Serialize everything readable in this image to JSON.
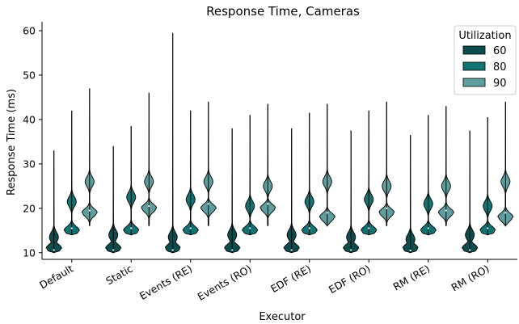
{
  "chart_data": {
    "type": "violin",
    "title": "Response Time, Cameras",
    "xlabel": "Executor",
    "ylabel": "Response Time (ms)",
    "ylim": [
      8.5,
      62
    ],
    "yticks": [
      10,
      20,
      30,
      40,
      50,
      60
    ],
    "categories": [
      "Default",
      "Static",
      "Events (RE)",
      "Events (RO)",
      "EDF (RE)",
      "EDF (RO)",
      "RM (RE)",
      "RM (RO)"
    ],
    "legend": {
      "title": "Utilization",
      "position": "top-right"
    },
    "series": [
      {
        "name": "60",
        "color": "#0e4d4d",
        "min": [
          10,
          10,
          10,
          10,
          10,
          10,
          10,
          10
        ],
        "mode": [
          11,
          11,
          11,
          11,
          11,
          11,
          11,
          11
        ],
        "bulge": [
          13.5,
          14,
          13.5,
          14,
          14,
          13.5,
          13,
          14
        ],
        "median": [
          10.6,
          10.6,
          10.6,
          10.6,
          10.6,
          10.6,
          10.5,
          10.6
        ],
        "max": [
          33,
          34,
          59.5,
          38,
          38,
          37.5,
          36.5,
          37.5
        ]
      },
      {
        "name": "80",
        "color": "#137373",
        "min": [
          14,
          14,
          14,
          14,
          14,
          14,
          14,
          14
        ],
        "mode": [
          15,
          15,
          15,
          15,
          15,
          15,
          15,
          15
        ],
        "bulge": [
          21.5,
          22.5,
          22,
          20.5,
          21.5,
          22,
          21,
          20.5
        ],
        "median": [
          15.5,
          15.5,
          15.5,
          15.5,
          15.5,
          15.5,
          15.5,
          15.5
        ],
        "max": [
          42,
          38.5,
          42,
          41,
          41.5,
          42,
          41,
          40.5
        ]
      },
      {
        "name": "90",
        "color": "#5f9e9e",
        "min": [
          16,
          16,
          16,
          16,
          16,
          16,
          16,
          16
        ],
        "mode": [
          19,
          20,
          20,
          20,
          18,
          19,
          19,
          18
        ],
        "bulge": [
          26,
          26,
          26,
          25,
          26,
          25,
          25,
          26
        ],
        "median": [
          19.5,
          20.5,
          21,
          21,
          19,
          20,
          19.5,
          19
        ],
        "max": [
          47,
          46,
          44,
          43.5,
          43.5,
          44,
          43,
          44
        ]
      }
    ]
  }
}
